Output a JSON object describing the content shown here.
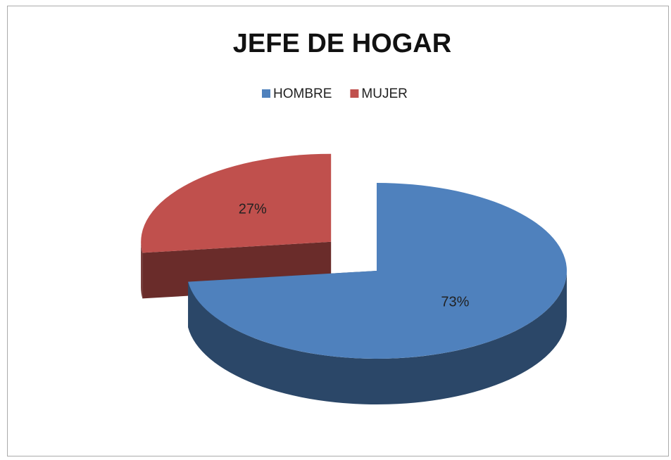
{
  "chart_data": {
    "type": "pie",
    "title": "JEFE DE HOGAR",
    "categories": [
      "HOMBRE",
      "MUJER"
    ],
    "values": [
      73,
      27
    ],
    "value_labels": [
      "73%",
      "27%"
    ],
    "colors": [
      "#4f81bd",
      "#c0504d"
    ],
    "legend": "top"
  }
}
